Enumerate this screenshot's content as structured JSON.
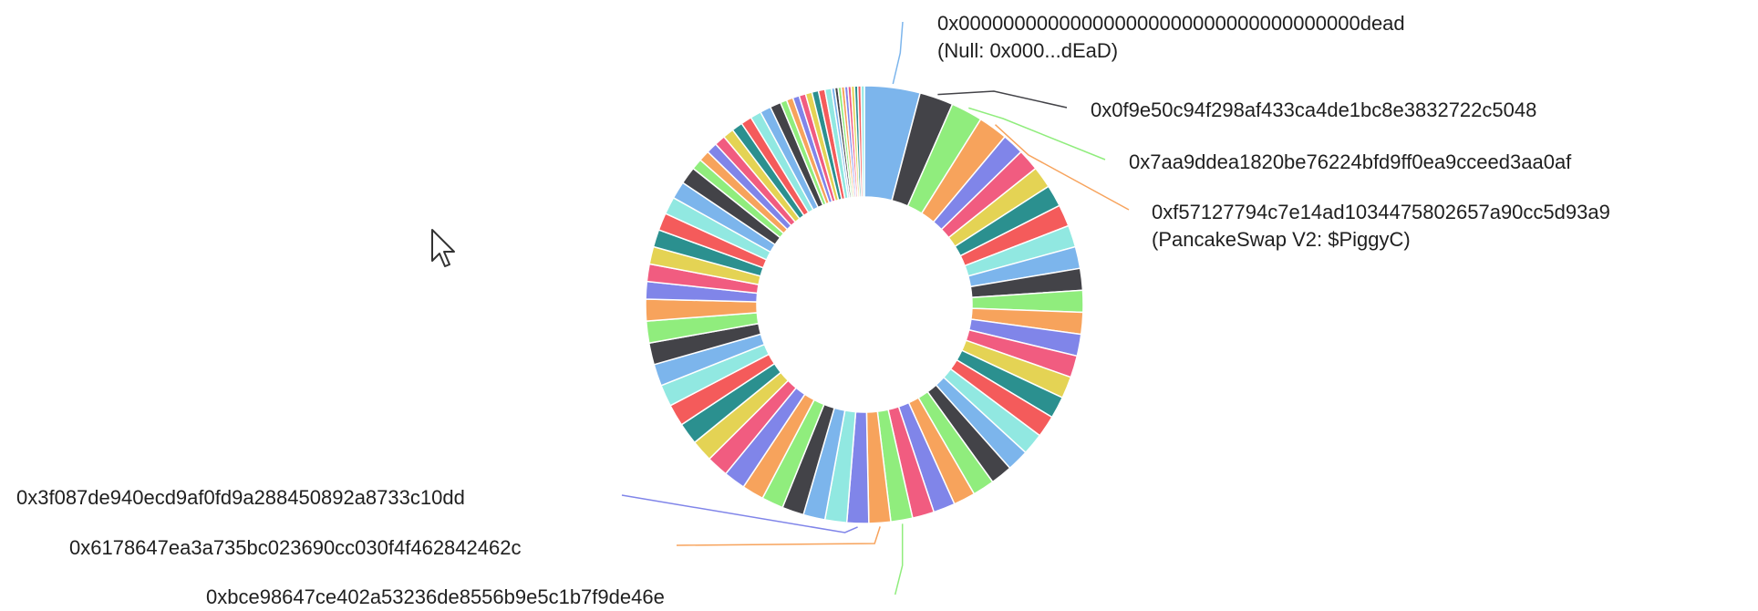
{
  "chart_data": {
    "type": "pie",
    "donut": true,
    "legend": "none",
    "slice_palette": [
      "#7cb5ec",
      "#434348",
      "#90ed7d",
      "#f7a35c",
      "#8085e9",
      "#f15c80",
      "#e4d354",
      "#2b908f",
      "#f45b5b",
      "#91e8e1"
    ],
    "slices": [
      {
        "label": "0x000000000000000000000000000000000000dead",
        "sublabel": "(Null: 0x000...dEaD)",
        "value": 5.1,
        "color": "#7cb5ec"
      },
      {
        "label": "0x0f9e50c94f298af433ca4de1bc8e3832722c5048",
        "value": 3.1,
        "color": "#434348"
      },
      {
        "label": "0x7aa9ddea1820be76224bfd9ff0ea9cceed3aa0af",
        "value": 2.9,
        "color": "#90ed7d"
      },
      {
        "label": "0xf57127794c7e14ad1034475802657a90cc5d93a9",
        "sublabel": "(PancakeSwap V2: $PiggyC)",
        "value": 2.7,
        "color": "#f7a35c"
      },
      {
        "value": 2.0
      },
      {
        "value": 2.0
      },
      {
        "value": 2.0
      },
      {
        "value": 2.0
      },
      {
        "value": 2.0
      },
      {
        "value": 2.0
      },
      {
        "value": 2.0
      },
      {
        "value": 2.0
      },
      {
        "value": 2.0
      },
      {
        "value": 2.0
      },
      {
        "value": 2.0
      },
      {
        "value": 2.0
      },
      {
        "value": 2.0
      },
      {
        "value": 2.0
      },
      {
        "value": 2.0
      },
      {
        "value": 2.0
      },
      {
        "value": 2.0
      },
      {
        "value": 2.0
      },
      {
        "value": 2.0
      },
      {
        "value": 2.0
      },
      {
        "value": 2.0
      },
      {
        "value": 2.0
      },
      {
        "label": "0xbce98647ce402a53236de8556b9e5c1b7f9de46e",
        "value": 2.0,
        "color": "#90ed7d"
      },
      {
        "label": "0x6178647ea3a735bc023690cc030f4f462842462c",
        "value": 2.0,
        "color": "#f7a35c"
      },
      {
        "label": "0x3f087de940ecd9af0fd9a288450892a8733c10dd",
        "value": 2.0,
        "color": "#8085e9"
      },
      {
        "value": 2.0
      },
      {
        "value": 2.0
      },
      {
        "value": 2.0
      },
      {
        "value": 2.0
      },
      {
        "value": 2.0
      },
      {
        "value": 2.0
      },
      {
        "value": 2.0
      },
      {
        "value": 2.0
      },
      {
        "value": 2.0
      },
      {
        "value": 2.0
      },
      {
        "value": 2.0
      },
      {
        "value": 2.0
      },
      {
        "value": 2.0
      },
      {
        "value": 2.0
      },
      {
        "value": 2.0
      },
      {
        "value": 1.6
      },
      {
        "value": 1.6
      },
      {
        "value": 1.6
      },
      {
        "value": 1.6
      },
      {
        "value": 1.6
      },
      {
        "value": 1.6
      },
      {
        "value": 1.6
      },
      {
        "value": 1.6
      },
      {
        "value": 1.0
      },
      {
        "value": 1.0
      },
      {
        "value": 1.0
      },
      {
        "value": 1.0
      },
      {
        "value": 1.0
      },
      {
        "value": 1.0
      },
      {
        "value": 1.0
      },
      {
        "value": 1.0
      },
      {
        "value": 1.0
      },
      {
        "value": 1.0
      },
      {
        "value": 0.6
      },
      {
        "value": 0.6
      },
      {
        "value": 0.6
      },
      {
        "value": 0.6
      },
      {
        "value": 0.6
      },
      {
        "value": 0.6
      },
      {
        "value": 0.6
      },
      {
        "value": 0.6
      },
      {
        "value": 0.3
      },
      {
        "value": 0.3
      },
      {
        "value": 0.3
      },
      {
        "value": 0.3
      },
      {
        "value": 0.3
      },
      {
        "value": 0.3
      },
      {
        "value": 0.3
      },
      {
        "value": 0.3
      },
      {
        "value": 0.3
      },
      {
        "value": 0.3
      }
    ]
  },
  "overlay": {
    "cursor_icon": "mouse-pointer-icon"
  }
}
